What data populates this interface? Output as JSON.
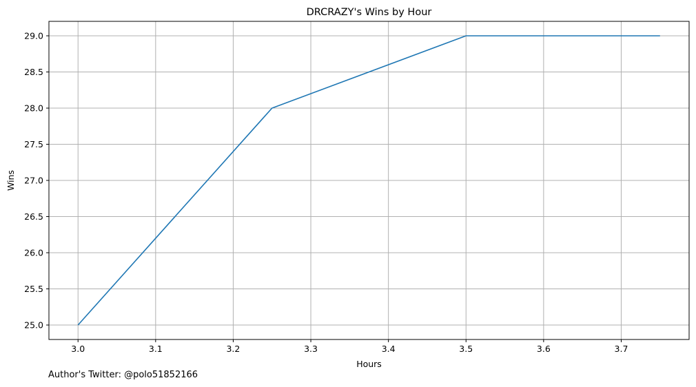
{
  "chart_data": {
    "type": "line",
    "title": "DRCRAZY's Wins by Hour",
    "xlabel": "Hours",
    "ylabel": "Wins",
    "x": [
      3.0,
      3.25,
      3.5,
      3.75
    ],
    "series": [
      {
        "values": [
          25,
          28,
          29,
          29
        ],
        "color": "#1f77b4"
      }
    ],
    "xlim": [
      2.9625,
      3.7875
    ],
    "ylim": [
      24.8,
      29.2
    ],
    "xticks": [
      "3.0",
      "3.1",
      "3.2",
      "3.3",
      "3.4",
      "3.5",
      "3.6",
      "3.7"
    ],
    "yticks": [
      "25.0",
      "25.5",
      "26.0",
      "26.5",
      "27.0",
      "27.5",
      "28.0",
      "28.5",
      "29.0"
    ],
    "grid": true,
    "grid_color": "#b0b0b0"
  },
  "footer": {
    "credit": "Author's Twitter: @polo51852166"
  }
}
